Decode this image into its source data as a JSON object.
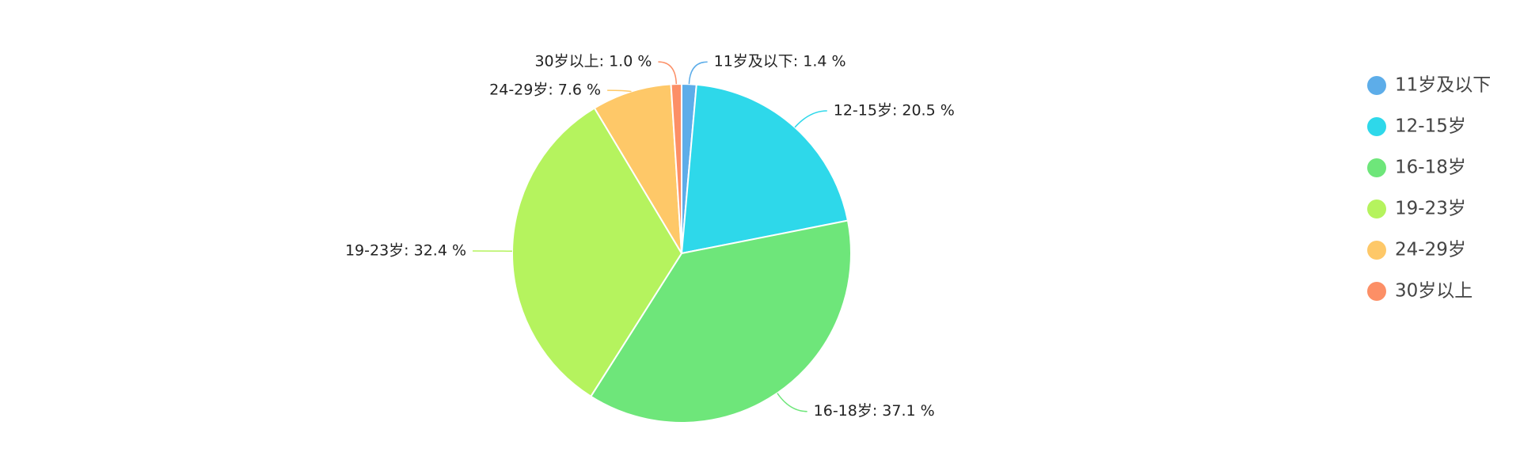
{
  "chart_data": {
    "type": "pie",
    "categories": [
      "11岁及以下",
      "12-15岁",
      "16-18岁",
      "19-23岁",
      "24-29岁",
      "30岁以上"
    ],
    "values": [
      1.4,
      20.5,
      37.1,
      32.4,
      7.6,
      1.0
    ],
    "value_labels": [
      "11岁及以下: 1.4 %",
      "12-15岁: 20.5 %",
      "16-18岁: 37.1 %",
      "19-23岁: 32.4 %",
      "24-29岁: 7.6 %",
      "30岁以上: 1.0 %"
    ],
    "colors": [
      "#5dade9",
      "#2ed8ea",
      "#6ee67a",
      "#b5f35e",
      "#fec868",
      "#fc8f66"
    ],
    "legend": "right"
  }
}
